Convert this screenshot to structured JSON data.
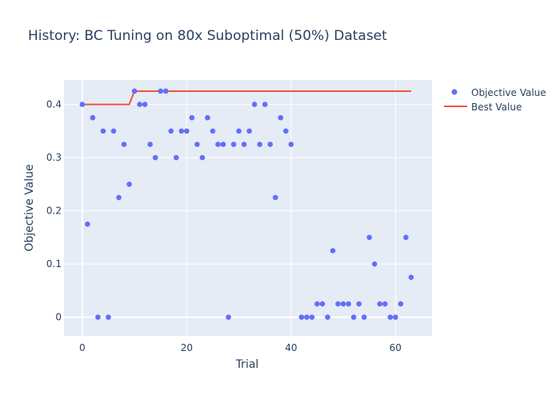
{
  "chart_data": {
    "type": "scatter",
    "title": "History: BC Tuning on 80x Suboptimal (50%) Dataset",
    "xlabel": "Trial",
    "ylabel": "Objective Value",
    "xlim": [
      -3.5,
      67
    ],
    "ylim": [
      -0.035,
      0.446
    ],
    "xticks": [
      0,
      20,
      40,
      60
    ],
    "xtick_labels": [
      "0",
      "20",
      "40",
      "60"
    ],
    "yticks": [
      0,
      0.1,
      0.2,
      0.3,
      0.4
    ],
    "ytick_labels": [
      "0",
      "0.1",
      "0.2",
      "0.3",
      "0.4"
    ],
    "grid": true,
    "legend_position": "top-right",
    "plot_bgcolor": "#e5ecf6",
    "series": [
      {
        "name": "Objective Value",
        "mode": "markers",
        "color": "#636efa",
        "x": [
          0,
          1,
          2,
          3,
          4,
          5,
          6,
          7,
          8,
          9,
          10,
          11,
          12,
          13,
          14,
          15,
          16,
          17,
          18,
          19,
          20,
          21,
          22,
          23,
          24,
          25,
          26,
          27,
          28,
          29,
          30,
          31,
          32,
          33,
          34,
          35,
          36,
          37,
          38,
          39,
          40,
          42,
          43,
          44,
          45,
          46,
          47,
          48,
          49,
          50,
          51,
          52,
          53,
          54,
          55,
          56,
          57,
          58,
          59,
          60,
          61,
          62,
          63
        ],
        "y": [
          0.4,
          0.175,
          0.375,
          0,
          0.35,
          0,
          0.35,
          0.225,
          0.325,
          0.25,
          0.425,
          0.4,
          0.4,
          0.325,
          0.3,
          0.425,
          0.425,
          0.35,
          0.3,
          0.35,
          0.35,
          0.375,
          0.325,
          0.3,
          0.375,
          0.35,
          0.325,
          0.325,
          0,
          0.325,
          0.35,
          0.325,
          0.35,
          0.4,
          0.325,
          0.4,
          0.325,
          0.225,
          0.375,
          0.35,
          0.325,
          0,
          0,
          0,
          0.025,
          0.025,
          0,
          0.125,
          0.025,
          0.025,
          0.025,
          0,
          0.025,
          0,
          0.15,
          0.1,
          0.025,
          0.025,
          0,
          0,
          0.025,
          0.15,
          0.075
        ]
      },
      {
        "name": "Best Value",
        "mode": "lines",
        "color": "#ef553b",
        "x": [
          0,
          9,
          10,
          63
        ],
        "y": [
          0.4,
          0.4,
          0.425,
          0.425
        ]
      }
    ]
  }
}
